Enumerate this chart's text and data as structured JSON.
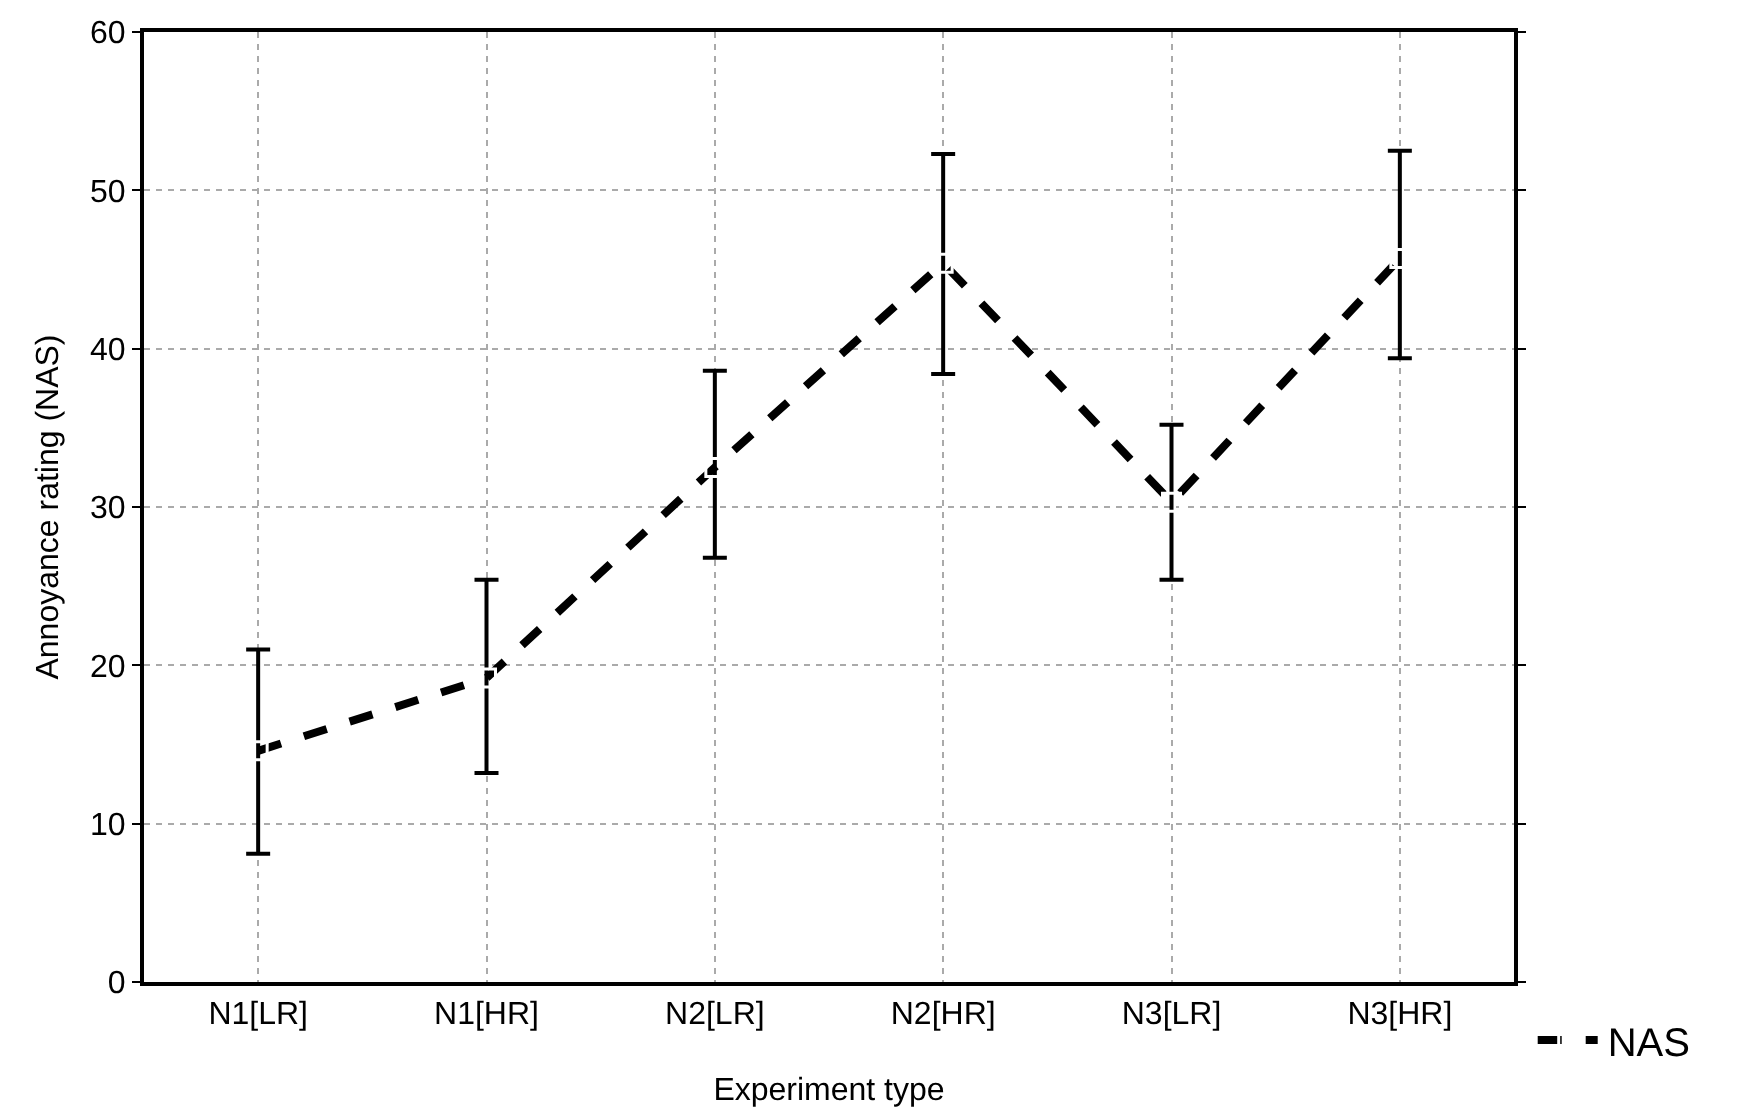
{
  "chart_data": {
    "type": "line",
    "xlabel": "Experiment type",
    "ylabel": "Annoyance rating (NAS)",
    "categories": [
      "N1[LR]",
      "N1[HR]",
      "N2[LR]",
      "N2[HR]",
      "N3[LR]",
      "N3[HR]"
    ],
    "series": [
      {
        "name": "NAS",
        "color": "#000000",
        "values": [
          14.6,
          19.2,
          32.5,
          45.4,
          30.3,
          45.7
        ],
        "errors": [
          [
            8.1,
            21.0
          ],
          [
            13.2,
            25.4
          ],
          [
            26.8,
            38.6
          ],
          [
            38.4,
            52.3
          ],
          [
            25.4,
            35.2
          ],
          [
            39.4,
            52.5
          ]
        ]
      }
    ],
    "ylim": [
      0,
      60
    ],
    "yticks": [
      0,
      10,
      20,
      30,
      40,
      50,
      60
    ],
    "grid": true,
    "legend": "bottom right",
    "marker": "square",
    "line_style": "dashed"
  }
}
